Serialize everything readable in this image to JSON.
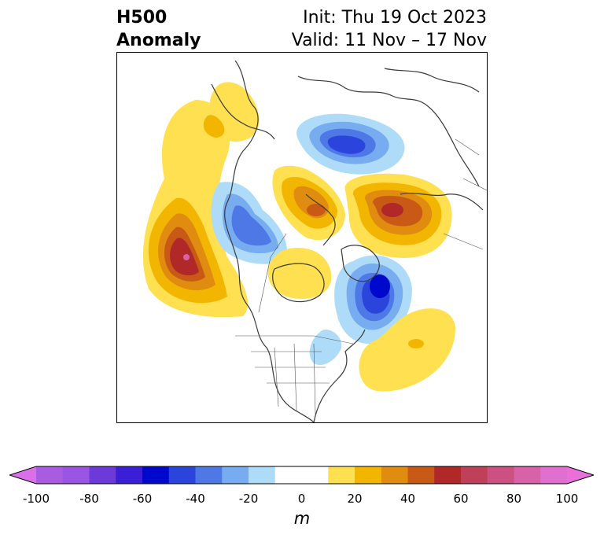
{
  "header": {
    "title_line1": "H500",
    "title_line2": "Anomaly",
    "init": "Init: Thu 19 Oct 2023",
    "valid": "Valid: 11 Nov – 17 Nov"
  },
  "map": {
    "projection": "polar stereographic",
    "region": "North America / Arctic"
  },
  "anomalies": [
    {
      "id": "pos-west-of-na",
      "sign": "positive",
      "peak_m": 80
    },
    {
      "id": "neg-canada-west",
      "sign": "negative",
      "peak_m": -40
    },
    {
      "id": "neg-polar",
      "sign": "negative",
      "peak_m": -50
    },
    {
      "id": "pos-greenland",
      "sign": "positive",
      "peak_m": 50
    },
    {
      "id": "pos-siberia",
      "sign": "positive",
      "peak_m": 60
    },
    {
      "id": "neg-north-atlantic",
      "sign": "negative",
      "peak_m": -70
    },
    {
      "id": "pos-hudson-bay",
      "sign": "positive",
      "peak_m": 30
    },
    {
      "id": "pos-atlantic",
      "sign": "positive",
      "peak_m": 30
    },
    {
      "id": "pos-alaska",
      "sign": "positive",
      "peak_m": 30
    }
  ],
  "colorbar": {
    "unit": "m",
    "min": -100,
    "max": 100,
    "step": 10,
    "extend": "both",
    "ticks": [
      "-100",
      "-80",
      "-60",
      "-40",
      "-20",
      "0",
      "20",
      "40",
      "60",
      "80",
      "100"
    ],
    "colors": {
      "lt_-100": "#d970e8",
      "-100_-90": "#a85ce0",
      "-90_-80": "#9a55e2",
      "-80_-70": "#6c3ad8",
      "-70_-60": "#3a1fd6",
      "-60_-50": "#0008cc",
      "-50_-40": "#2a44dc",
      "-40_-30": "#4e78e6",
      "-30_-20": "#78acf0",
      "-20_-10": "#aedcf8",
      "-10_10": "#ffffff",
      "10_20": "#ffe050",
      "20_30": "#f2b600",
      "30_40": "#e08c10",
      "40_50": "#c85a16",
      "50_60": "#b02828",
      "60_70": "#c0405a",
      "70_80": "#cc5082",
      "80_90": "#d862a8",
      "90_100": "#e070d0",
      "gt_100": "#e870d8"
    }
  }
}
